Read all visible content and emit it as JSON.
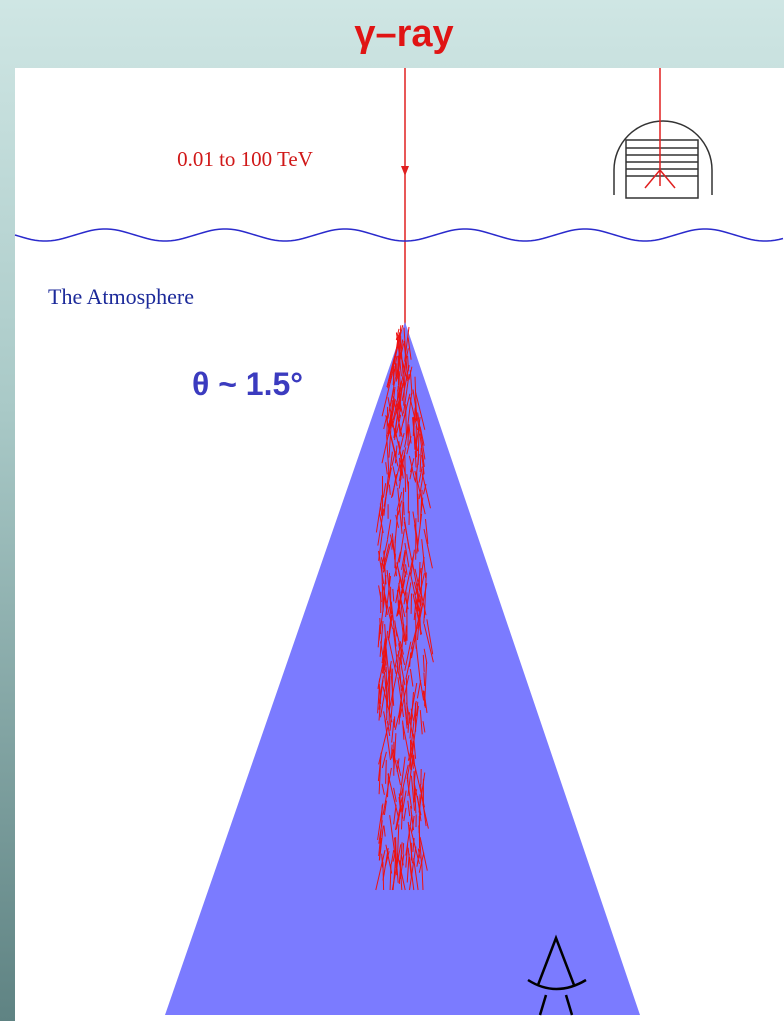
{
  "header": {
    "title": "γ–ray"
  },
  "labels": {
    "energy": "0.01 to 100 TeV",
    "atmosphere": "The Atmosphere",
    "angle": "θ ~ 1.5°"
  }
}
